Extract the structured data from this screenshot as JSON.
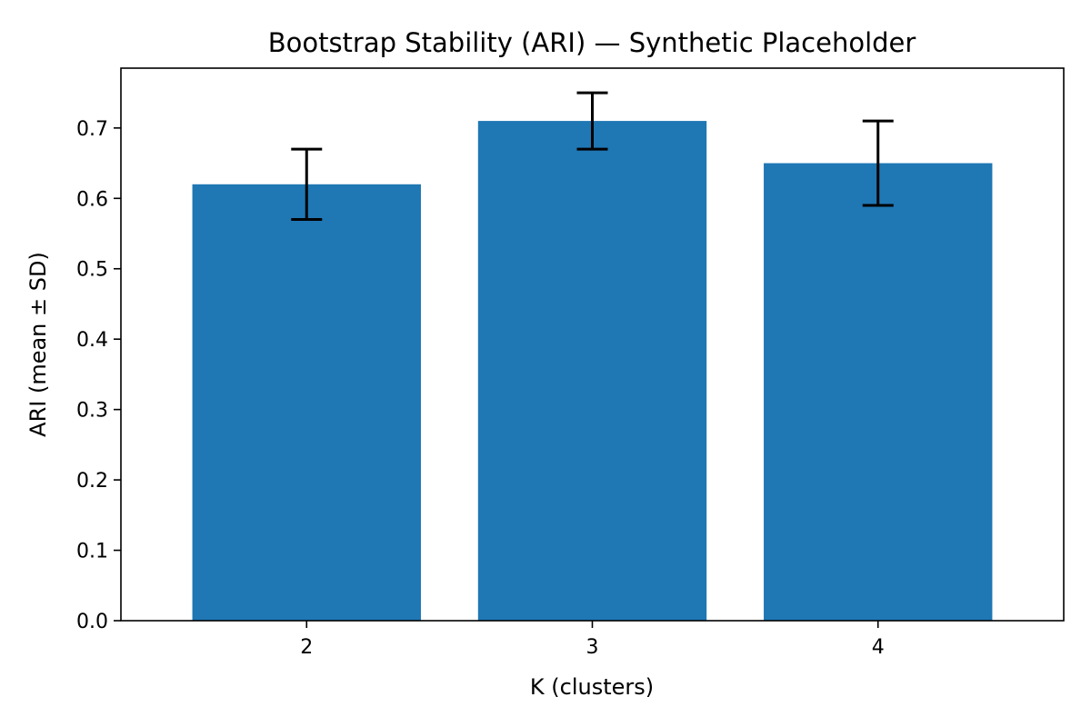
{
  "chart_data": {
    "type": "bar",
    "title": "Bootstrap Stability (ARI) — Synthetic Placeholder",
    "xlabel": "K (clusters)",
    "ylabel": "ARI (mean ± SD)",
    "categories": [
      "2",
      "3",
      "4"
    ],
    "values": [
      0.62,
      0.71,
      0.65
    ],
    "errors": [
      0.05,
      0.04,
      0.06
    ],
    "ylim": [
      0,
      0.785
    ],
    "yticks": [
      0.0,
      0.1,
      0.2,
      0.3,
      0.4,
      0.5,
      0.6,
      0.7
    ],
    "ytick_labels": [
      "0.0",
      "0.1",
      "0.2",
      "0.3",
      "0.4",
      "0.5",
      "0.6",
      "0.7"
    ],
    "grid": false,
    "bar_color": "#1f77b4",
    "error_color": "#000000"
  }
}
